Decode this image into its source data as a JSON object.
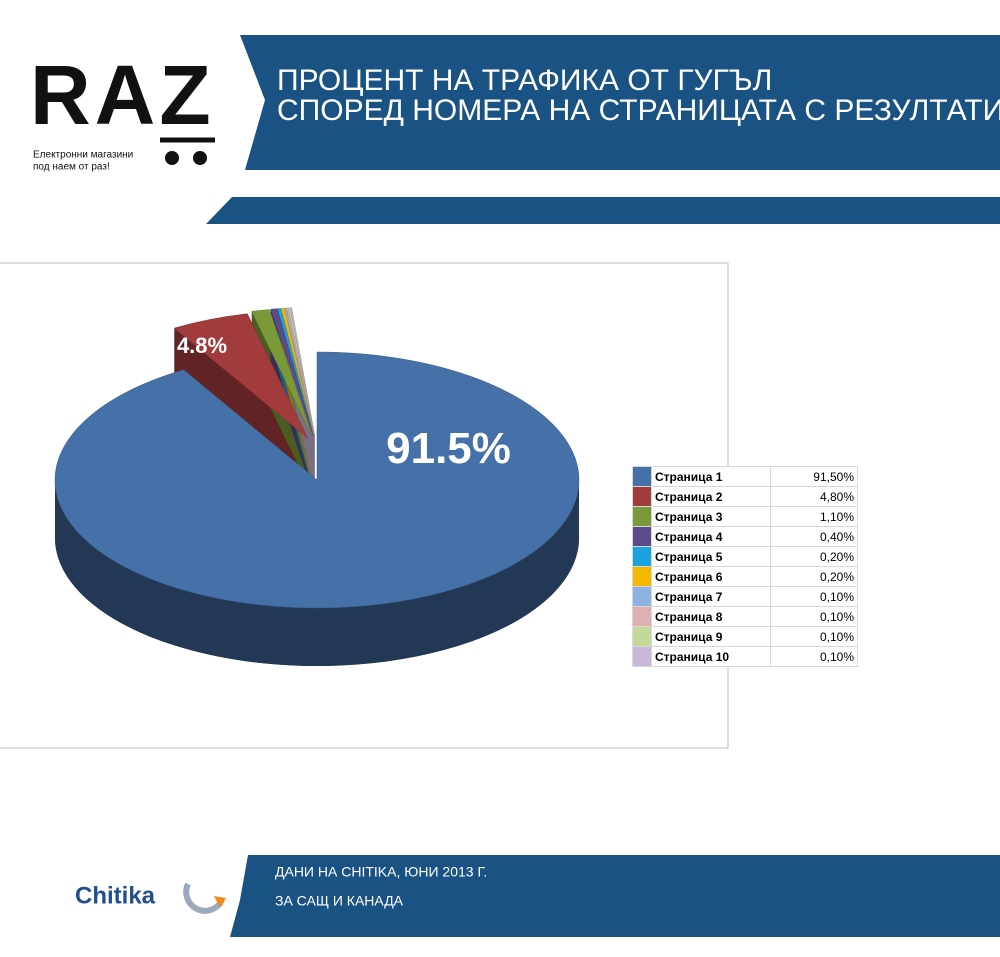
{
  "header": {
    "logo": "RAZ",
    "tagline": [
      "Електронни магазини",
      "под наем от раз!"
    ],
    "title": [
      "ПРОЦЕНТ НА ТРАФИКА ОТ ГУГЪЛ",
      "СПОРЕД НОМЕРА НА СТРАНИЦАТА С РЕЗУЛТАТИ"
    ]
  },
  "chart_data": {
    "type": "pie",
    "categories": [
      "Страница 1",
      "Страница 2",
      "Страница 3",
      "Страница 4",
      "Страница 5",
      "Страница 6",
      "Страница 7",
      "Страница 8",
      "Страница 9",
      "Страница 10"
    ],
    "values": [
      91.5,
      4.8,
      1.1,
      0.4,
      0.2,
      0.2,
      0.1,
      0.1,
      0.1,
      0.1
    ],
    "value_labels": [
      "91,50%",
      "4,80%",
      "1,10%",
      "0,40%",
      "0,20%",
      "0,20%",
      "0,10%",
      "0,10%",
      "0,10%",
      "0,10%"
    ],
    "slice_labels": [
      "91.5%",
      "4.8%",
      null,
      null,
      null,
      null,
      null,
      null,
      null,
      null
    ],
    "colors": [
      "#4570a8",
      "#a23b3b",
      "#7a9a3a",
      "#5c4a8a",
      "#1aa3e0",
      "#f5b800",
      "#8fb3e0",
      "#e0b0b0",
      "#c4d89a",
      "#c9b8da"
    ]
  },
  "footer": {
    "source": "ДАНИ НА CHITIKA, ЮНИ 2013 Г.",
    "region": "ЗА САЩ И КАНАДА",
    "brand": "Chitika"
  }
}
